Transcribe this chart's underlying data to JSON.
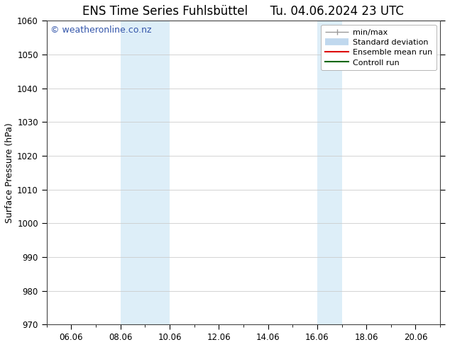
{
  "title_left": "ENS Time Series Fuhlsbüttel",
  "title_right": "Tu. 04.06.2024 23 UTC",
  "ylabel": "Surface Pressure (hPa)",
  "ylim": [
    970,
    1060
  ],
  "yticks": [
    970,
    980,
    990,
    1000,
    1010,
    1020,
    1030,
    1040,
    1050,
    1060
  ],
  "xlim_days": [
    5.0,
    21.0
  ],
  "xtick_major": [
    6,
    8,
    10,
    12,
    14,
    16,
    18,
    20
  ],
  "xtick_minor": [
    5,
    6,
    7,
    8,
    9,
    10,
    11,
    12,
    13,
    14,
    15,
    16,
    17,
    18,
    19,
    20,
    21
  ],
  "xtick_labels": [
    "06.06",
    "08.06",
    "10.06",
    "12.06",
    "14.06",
    "16.06",
    "18.06",
    "20.06"
  ],
  "shaded_bands": [
    {
      "x_start": 8.0,
      "x_end": 10.0,
      "color": "#ddeef8"
    },
    {
      "x_start": 16.0,
      "x_end": 17.0,
      "color": "#ddeef8"
    }
  ],
  "watermark_text": "© weatheronline.co.nz",
  "watermark_color": "#3355aa",
  "watermark_fontsize": 9,
  "legend_labels": [
    "min/max",
    "Standard deviation",
    "Ensemble mean run",
    "Controll run"
  ],
  "legend_colors": [
    "#999999",
    "#c0d8ee",
    "#dd0000",
    "#006600"
  ],
  "bg_color": "#ffffff",
  "plot_bg": "#ffffff",
  "grid_color": "#cccccc",
  "title_fontsize": 12,
  "axis_label_fontsize": 9,
  "tick_fontsize": 8.5,
  "legend_fontsize": 8
}
